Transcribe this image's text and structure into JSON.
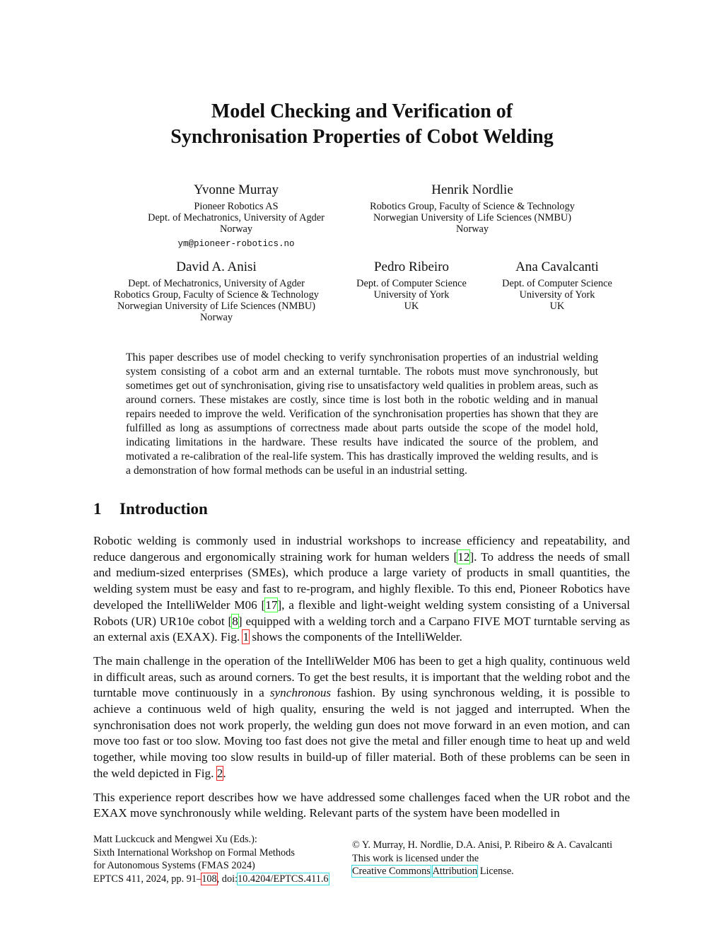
{
  "title": [
    "Model Checking and Verification of",
    "Synchronisation Properties of Cobot Welding"
  ],
  "authors": [
    {
      "name": "Yvonne Murray",
      "affiliation": [
        "Pioneer Robotics AS",
        "Dept. of Mechatronics, University of Agder",
        "Norway"
      ],
      "email": "ym@pioneer-robotics.no"
    },
    {
      "name": "Henrik Nordlie",
      "affiliation": [
        "Robotics Group, Faculty of Science & Technology",
        "Norwegian University of Life Sciences (NMBU)",
        "Norway"
      ]
    },
    {
      "name": "David A. Anisi",
      "affiliation": [
        "Dept. of Mechatronics, University of Agder",
        "Robotics Group, Faculty of Science & Technology",
        "Norwegian University of Life Sciences (NMBU)",
        "Norway"
      ]
    },
    {
      "name": "Pedro Ribeiro",
      "affiliation": [
        "Dept. of Computer Science",
        "University of York",
        "UK"
      ]
    },
    {
      "name": "Ana Cavalcanti",
      "affiliation": [
        "Dept. of Computer Science",
        "University of York",
        "UK"
      ]
    }
  ],
  "abstract": "This paper describes use of model checking to verify synchronisation properties of an industrial welding system consisting of a cobot arm and an external turntable. The robots must move synchronously, but sometimes get out of synchronisation, giving rise to unsatisfactory weld qualities in problem areas, such as around corners. These mistakes are costly, since time is lost both in the robotic welding and in manual repairs needed to improve the weld. Verification of the synchronisation properties has shown that they are fulfilled as long as assumptions of correctness made about parts outside the scope of the model hold, indicating limitations in the hardware. These results have indicated the source of the problem, and motivated a re-calibration of the real-life system. This has drastically improved the welding results, and is a demonstration of how formal methods can be useful in an industrial setting.",
  "section": {
    "number": "1",
    "title": "Introduction"
  },
  "paragraphs": [
    [
      {
        "t": "Robotic welding is commonly used in industrial workshops to increase efficiency and repeatability, and reduce dangerous and ergonomically straining work for human welders ["
      },
      {
        "t": "12",
        "k": "cite"
      },
      {
        "t": "]. To address the needs of small and medium-sized enterprises (SMEs), which produce a large variety of products in small quantities, the welding system must be easy and fast to re-program, and highly flexible. To this end, Pioneer Robotics have developed the IntelliWelder M06 ["
      },
      {
        "t": "17",
        "k": "cite"
      },
      {
        "t": "], a flexible and light-weight welding system consisting of a Universal Robots (UR) UR10e cobot ["
      },
      {
        "t": "8",
        "k": "cite"
      },
      {
        "t": "] equipped with a welding torch and a Carpano FIVE MOT turntable serving as an external axis (EXAX). Fig. "
      },
      {
        "t": "1",
        "k": "ref"
      },
      {
        "t": " shows the components of the IntelliWelder."
      }
    ],
    [
      {
        "t": "The main challenge in the operation of the IntelliWelder M06 has been to get a high quality, continuous weld in difficult areas, such as around corners. To get the best results, it is important that the welding robot and the turntable move continuously in a "
      },
      {
        "t": "synchronous",
        "k": "em"
      },
      {
        "t": " fashion. By using synchronous welding, it is possible to achieve a continuous weld of high quality, ensuring the weld is not jagged and interrupted. When the synchronisation does not work properly, the welding gun does not move forward in an even motion, and can move too fast or too slow. Moving too fast does not give the metal and filler enough time to heat up and weld together, while moving too slow results in build-up of filler material. Both of these problems can be seen in the weld depicted in Fig. "
      },
      {
        "t": "2",
        "k": "ref"
      },
      {
        "t": "."
      }
    ],
    [
      {
        "t": "This experience report describes how we have addressed some challenges faced when the UR robot and the EXAX move synchronously while welding. Relevant parts of the system have been modelled in"
      }
    ]
  ],
  "footer": {
    "left": [
      "Matt Luckcuck and Mengwei Xu (Eds.):",
      "Sixth International Workshop on Formal Methods",
      "for Autonomous Systems (FMAS 2024)"
    ],
    "eptcs": "EPTCS 411, 2024, pp. 91–",
    "last_page": "108",
    "doi_prefix": ", doi:",
    "doi": "10.4204/EPTCS.411.6",
    "copyright": "© Y. Murray, H. Nordlie, D.A. Anisi, P. Ribeiro & A. Cavalcanti",
    "license_line": "This work is licensed under the",
    "cc": "Creative Commons",
    "attribution": "Attribution",
    "license_end": " License."
  }
}
